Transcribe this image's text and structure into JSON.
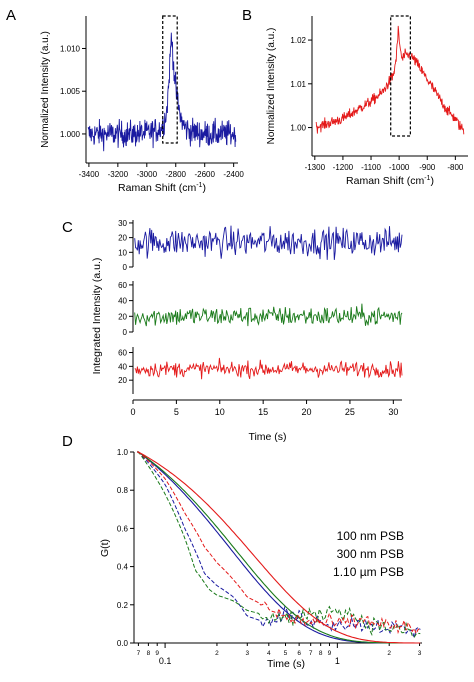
{
  "chart_data": [
    {
      "panel": "A",
      "type": "line",
      "xlabel": "Raman Shift (cm",
      "xlabel_sup": "-1",
      "xlabel_close": ")",
      "ylabel": "Normalized Intensity (a.u.)",
      "xlim": [
        -3420,
        -2370
      ],
      "ylim": [
        0.9966,
        1.0138
      ],
      "x_ticks": [
        -3400,
        -3200,
        -3000,
        -2800,
        -2600,
        -2400
      ],
      "x_tick_labels": [
        "-3400",
        "-3200",
        "-3000",
        "-2800",
        "-2600",
        "-2400"
      ],
      "y_ticks": [
        1.0,
        1.005,
        1.01
      ],
      "y_tick_labels": [
        "1.000",
        "1.005",
        "1.010"
      ],
      "highlight_box": [
        -2890,
        -2790
      ],
      "series": [
        {
          "color": "#1a1aa0",
          "x": [
            -3400,
            -3300,
            -3200,
            -3100,
            -3000,
            -2950,
            -2900,
            -2880,
            -2860,
            -2850,
            -2840,
            -2830,
            -2820,
            -2810,
            -2800,
            -2780,
            -2760,
            -2740,
            -2700,
            -2600,
            -2500,
            -2400
          ],
          "y": [
            1.0,
            1.0,
            1.0,
            1.0,
            1.0001,
            1.0003,
            1.0007,
            1.0015,
            1.003,
            1.0055,
            1.0085,
            1.0115,
            1.0095,
            1.007,
            1.0052,
            1.003,
            1.0016,
            1.0008,
            1.0003,
            1.0,
            1.0,
            1.0
          ],
          "noise": 0.0011
        }
      ]
    },
    {
      "panel": "B",
      "type": "line",
      "xlabel": "Raman Shift (cm",
      "xlabel_sup": "-1",
      "xlabel_close": ")",
      "ylabel": "Normalized Intensity (a.u.)",
      "xlim": [
        -1310,
        -755
      ],
      "ylim": [
        0.9935,
        1.0255
      ],
      "x_ticks": [
        -1300,
        -1200,
        -1100,
        -1000,
        -900,
        -800
      ],
      "x_tick_labels": [
        "-1300",
        "-1200",
        "-1100",
        "-1000",
        "-900",
        "-800"
      ],
      "y_ticks": [
        1.0,
        1.01,
        1.02
      ],
      "y_tick_labels": [
        "1.00",
        "1.01",
        "1.02"
      ],
      "highlight_box": [
        -1030,
        -960
      ],
      "series": [
        {
          "color": "#e41a1a",
          "x": [
            -1300,
            -1250,
            -1200,
            -1150,
            -1100,
            -1060,
            -1040,
            -1020,
            -1010,
            -1003,
            -998,
            -990,
            -980,
            -960,
            -940,
            -920,
            -900,
            -870,
            -850,
            -830,
            -800,
            -780,
            -760
          ],
          "y": [
            1.0,
            1.001,
            1.002,
            1.004,
            1.006,
            1.008,
            1.01,
            1.012,
            1.016,
            1.0225,
            1.019,
            1.0155,
            1.0165,
            1.0165,
            1.015,
            1.013,
            1.011,
            1.008,
            1.006,
            1.004,
            1.002,
            1.0,
            0.999
          ],
          "noise": 0.0009
        }
      ]
    },
    {
      "panel": "C",
      "type": "line",
      "xlabel": "Time (s)",
      "ylabel": "Integrated Intensity (a.u.)",
      "xlim": [
        0,
        31
      ],
      "x_ticks": [
        0,
        5,
        10,
        15,
        20,
        25,
        30
      ],
      "x_tick_labels": [
        "0",
        "5",
        "10",
        "15",
        "20",
        "25",
        "30"
      ],
      "series": [
        {
          "color": "#1a1aa0",
          "ylim": [
            0,
            32
          ],
          "y_ticks": [
            0,
            10,
            20,
            30
          ],
          "y_tick_labels": [
            "0",
            "10",
            "20",
            "30"
          ],
          "mean": 17,
          "noise": 7,
          "samples": 300
        },
        {
          "color": "#1a7a1a",
          "ylim": [
            0,
            65
          ],
          "y_ticks": [
            0,
            20,
            40,
            60
          ],
          "y_tick_labels": [
            "0",
            "20",
            "40",
            "60"
          ],
          "mean": 20,
          "noise": 9,
          "samples": 300
        },
        {
          "color": "#e41a1a",
          "ylim": [
            0,
            68
          ],
          "y_ticks": [
            20,
            40,
            60
          ],
          "y_tick_labels": [
            "20",
            "40",
            "60"
          ],
          "mean": 36,
          "noise": 8,
          "samples": 300
        }
      ]
    },
    {
      "panel": "D",
      "type": "line",
      "xscale": "log",
      "xlabel": "Time (s)",
      "ylabel": "G(t)",
      "xlim": [
        0.066,
        3.1
      ],
      "ylim": [
        0,
        1
      ],
      "y_ticks": [
        0,
        0.2,
        0.4,
        0.6,
        0.8,
        1.0
      ],
      "y_tick_labels": [
        "0.0",
        "0.2",
        "0.4",
        "0.6",
        "0.8",
        "1.0"
      ],
      "x_major_ticks": [
        0.1,
        1
      ],
      "x_major_labels": [
        "0.1",
        "1"
      ],
      "x_minor_ticks": [
        0.07,
        0.08,
        0.09,
        0.2,
        0.3,
        0.4,
        0.5,
        0.6,
        0.7,
        0.8,
        0.9,
        2,
        3
      ],
      "x_minor_labels": [
        "7",
        "8",
        "9",
        "2",
        "3",
        "4",
        "5",
        "6",
        "7",
        "8",
        "9",
        "2",
        "3"
      ],
      "legend_position": "right",
      "series": [
        {
          "name": "100 nm PSB",
          "color": "#1a1aa0",
          "tau": 0.24,
          "data_x": [
            0.07,
            0.1,
            0.13,
            0.17,
            0.2,
            0.25,
            0.3,
            0.4,
            0.5,
            0.7,
            1.0,
            1.5,
            2.0,
            3.0
          ],
          "data_y": [
            1.0,
            0.83,
            0.6,
            0.36,
            0.3,
            0.24,
            0.14,
            0.1,
            0.15,
            0.12,
            0.1,
            0.1,
            0.08,
            0.05
          ]
        },
        {
          "name": "300 nm PSB",
          "color": "#1a7a1a",
          "tau": 0.26,
          "data_x": [
            0.07,
            0.1,
            0.13,
            0.15,
            0.18,
            0.2,
            0.25,
            0.3,
            0.4,
            0.5,
            0.7,
            1.0,
            1.5,
            2.0,
            3.0
          ],
          "data_y": [
            1.0,
            0.78,
            0.55,
            0.38,
            0.28,
            0.25,
            0.22,
            0.17,
            0.14,
            0.13,
            0.14,
            0.18,
            0.1,
            0.08,
            0.04
          ]
        },
        {
          "name": "1.10 µm PSB",
          "color": "#e41a1a",
          "tau": 0.33,
          "data_x": [
            0.07,
            0.1,
            0.13,
            0.17,
            0.2,
            0.25,
            0.3,
            0.4,
            0.5,
            0.7,
            1.0,
            1.5,
            2.0,
            3.0
          ],
          "data_y": [
            1.0,
            0.86,
            0.68,
            0.5,
            0.42,
            0.33,
            0.24,
            0.18,
            0.13,
            0.11,
            0.1,
            0.12,
            0.09,
            0.06
          ]
        }
      ]
    }
  ],
  "panel_letters": [
    "A",
    "B",
    "C",
    "D"
  ],
  "colors": {
    "axis": "#000000",
    "box": "#000000"
  }
}
